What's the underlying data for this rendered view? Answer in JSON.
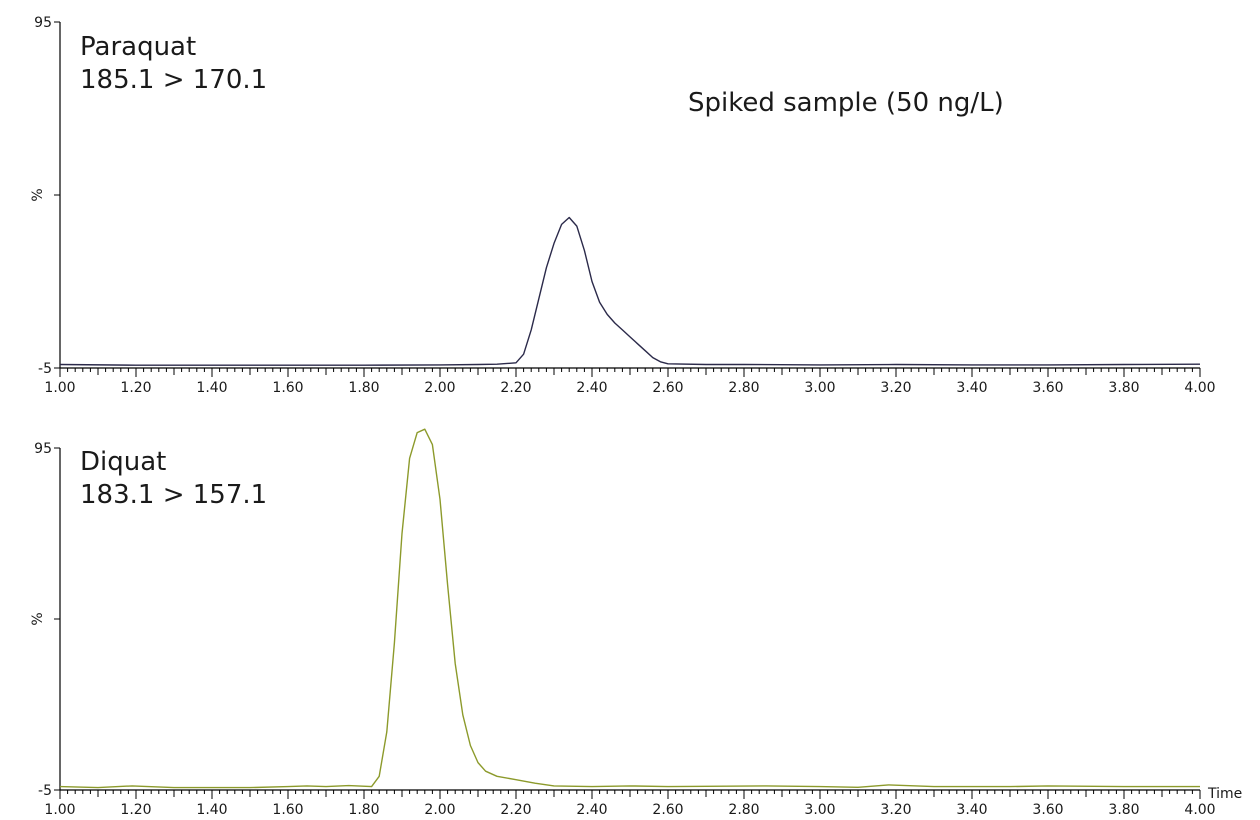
{
  "chart_data": [
    {
      "type": "line",
      "title": "",
      "annotations": [
        "Paraquat",
        "185.1 > 170.1",
        "Spiked sample (50 ng/L)"
      ],
      "ylabel": "%",
      "xlabel": "",
      "xlim": [
        1.0,
        4.0
      ],
      "ylim": [
        -5,
        95
      ],
      "yticks": [
        "95",
        "%",
        "-5"
      ],
      "xticks": [
        "1.00",
        "1.20",
        "1.40",
        "1.60",
        "1.80",
        "2.00",
        "2.20",
        "2.40",
        "2.60",
        "2.80",
        "3.00",
        "3.20",
        "3.40",
        "3.60",
        "3.80",
        "4.00"
      ],
      "grid": false,
      "series": [
        {
          "color": "#2b2a4a",
          "x": [
            1.0,
            1.2,
            1.4,
            1.6,
            1.8,
            2.0,
            2.1,
            2.15,
            2.2,
            2.22,
            2.24,
            2.26,
            2.28,
            2.3,
            2.32,
            2.34,
            2.36,
            2.38,
            2.4,
            2.42,
            2.44,
            2.46,
            2.48,
            2.5,
            2.52,
            2.54,
            2.56,
            2.58,
            2.6,
            2.7,
            2.8,
            3.0,
            3.2,
            3.4,
            3.6,
            3.8,
            4.0
          ],
          "y": [
            -4.0,
            -4.2,
            -4.2,
            -4.2,
            -4.2,
            -4.1,
            -4.0,
            -3.9,
            -3.5,
            -1.0,
            6.0,
            15.0,
            24.0,
            31.0,
            36.5,
            38.5,
            36.0,
            29.0,
            20.0,
            14.0,
            10.5,
            8.0,
            6.0,
            4.0,
            2.0,
            0.0,
            -2.0,
            -3.2,
            -3.8,
            -4.0,
            -4.0,
            -4.1,
            -4.0,
            -4.1,
            -4.1,
            -4.0,
            -3.9
          ]
        }
      ]
    },
    {
      "type": "line",
      "title": "",
      "annotations": [
        "Diquat",
        "183.1 > 157.1"
      ],
      "ylabel": "%",
      "xlabel": "Time",
      "xlim": [
        1.0,
        4.0
      ],
      "ylim": [
        -5,
        95
      ],
      "yticks": [
        "95",
        "%",
        "-5"
      ],
      "xticks": [
        "1.00",
        "1.20",
        "1.40",
        "1.60",
        "1.80",
        "2.00",
        "2.20",
        "2.40",
        "2.60",
        "2.80",
        "3.00",
        "3.20",
        "3.40",
        "3.60",
        "3.80",
        "4.00"
      ],
      "grid": false,
      "series": [
        {
          "color": "#8c9a2b",
          "x": [
            1.0,
            1.1,
            1.19,
            1.3,
            1.5,
            1.6,
            1.65,
            1.7,
            1.76,
            1.82,
            1.84,
            1.86,
            1.88,
            1.9,
            1.92,
            1.94,
            1.96,
            1.98,
            2.0,
            2.02,
            2.04,
            2.06,
            2.08,
            2.1,
            2.12,
            2.15,
            2.2,
            2.25,
            2.3,
            2.4,
            2.5,
            2.6,
            2.86,
            3.0,
            3.1,
            3.18,
            3.3,
            3.5,
            3.6,
            3.8,
            4.0
          ],
          "y": [
            -4.0,
            -4.3,
            -3.8,
            -4.3,
            -4.3,
            -4.0,
            -3.8,
            -4.0,
            -3.7,
            -4.0,
            -1.0,
            12.0,
            38.0,
            70.0,
            92.0,
            99.5,
            100.5,
            96.0,
            80.0,
            55.0,
            32.0,
            17.0,
            8.0,
            3.0,
            0.5,
            -1.0,
            -2.0,
            -3.0,
            -3.8,
            -4.0,
            -3.8,
            -4.0,
            -3.8,
            -4.0,
            -4.2,
            -3.5,
            -4.0,
            -4.0,
            -3.8,
            -4.0,
            -4.0
          ]
        }
      ]
    }
  ]
}
